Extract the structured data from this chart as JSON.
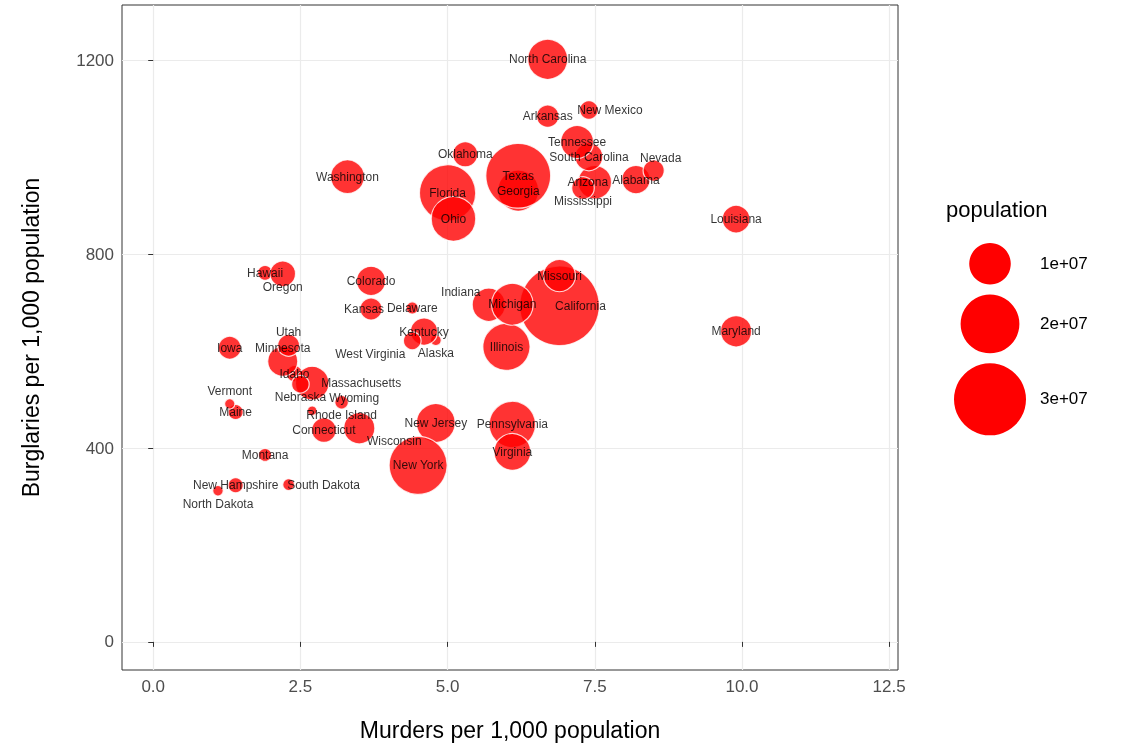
{
  "chart_data": {
    "type": "bubble",
    "xlabel": "Murders per 1,000 population",
    "ylabel": "Burglaries per 1,000 population",
    "legend_title": "population",
    "grid": true,
    "xlim": [
      -0.53,
      12.65
    ],
    "ylim": [
      -58,
      1314
    ],
    "xticks": [
      {
        "value": 0,
        "label": "0.0"
      },
      {
        "value": 2.5,
        "label": "2.5"
      },
      {
        "value": 5,
        "label": "5.0"
      },
      {
        "value": 7.5,
        "label": "7.5"
      },
      {
        "value": 10,
        "label": "10.0"
      },
      {
        "value": 12.5,
        "label": "12.5"
      }
    ],
    "yticks": [
      0,
      400,
      800,
      1200
    ],
    "size_legend": [
      {
        "value": 10000000,
        "label": "1e+07"
      },
      {
        "value": 20000000,
        "label": "2e+07"
      },
      {
        "value": 30000000,
        "label": "3e+07"
      }
    ],
    "series": [
      {
        "color": "#ff0000",
        "x": [
          8.2,
          4.8,
          7.5,
          6.7,
          6.9,
          3.7,
          2.9,
          4.4,
          5,
          6.2,
          1.9,
          2.4,
          6,
          5.7,
          1.3,
          3.7,
          4.6,
          9.9,
          1.4,
          9.9,
          2.7,
          6.1,
          2.2,
          7.3,
          6.9,
          1.9,
          2.5,
          8.5,
          1.4,
          4.8,
          7.4,
          4.5,
          6.7,
          1.1,
          5.1,
          5.3,
          2.2,
          6.1,
          3.2,
          7.4,
          2.3,
          7.2,
          6.2,
          2.3,
          1.3,
          6.1,
          3.3,
          4.4,
          3.5,
          2.7
        ],
        "values": [
          953.8,
          622.5,
          948.4,
          1084.6,
          693.3,
          744.8,
          437.1,
          688.9,
          926.3,
          931,
          761.4,
          553.3,
          608.8,
          695.6,
          606.9,
          686.9,
          640.2,
          872.3,
          474.4,
          640.7,
          533.8,
          696.6,
          578.9,
          936.6,
          755.7,
          385.7,
          531.6,
          972.4,
          323.3,
          451.5,
          1097.2,
          364.2,
          1201.9,
          311.8,
          872.8,
          1006,
          759.3,
          448.6,
          494.3,
          1000.9,
          324.4,
          1031.4,
          961.6,
          611.7,
          491.1,
          392.1,
          959.7,
          621.2,
          440.8,
          476.9
        ],
        "sizes": [
          4627851,
          686293,
          6500180,
          2855390,
          36756666,
          4861515,
          3501252,
          873092,
          18328340,
          9685744,
          1288198,
          1523816,
          12901563,
          6376792,
          3002555,
          2802134,
          4269245,
          4410796,
          1316456,
          5633597,
          6497967,
          10003422,
          5220393,
          2938618,
          5911605,
          967440,
          1783432,
          2600167,
          1315809,
          8682661,
          1984356,
          19490297,
          9222414,
          641481,
          11485910,
          3642361,
          3790060,
          12448279,
          1050788,
          4479800,
          804194,
          6214888,
          24326974,
          2736424,
          621270,
          7769089,
          6549224,
          1814468,
          5627967,
          532668
        ]
      }
    ],
    "annotations": [
      {
        "text": "Alabama",
        "x": 8.2,
        "y": 953.8
      },
      {
        "text": "Alaska",
        "x": 4.8,
        "y": 622.5
      },
      {
        "text": "Arizona",
        "x": 7.5,
        "y": 948.4
      },
      {
        "text": "Arkansas",
        "x": 6.7,
        "y": 1084.6
      },
      {
        "text": "California",
        "x": 6.9,
        "y": 693.3
      },
      {
        "text": "Colorado",
        "x": 3.7,
        "y": 744.8
      },
      {
        "text": "Connecticut",
        "x": 2.9,
        "y": 437.1
      },
      {
        "text": "Delaware",
        "x": 4.4,
        "y": 688.9
      },
      {
        "text": "Florida",
        "x": 5,
        "y": 926.3
      },
      {
        "text": "Georgia",
        "x": 6.2,
        "y": 931
      },
      {
        "text": "Hawaii",
        "x": 1.9,
        "y": 761.4
      },
      {
        "text": "Idaho",
        "x": 2.4,
        "y": 553.3
      },
      {
        "text": "Illinois",
        "x": 6,
        "y": 608.8
      },
      {
        "text": "Indiana",
        "x": 5.7,
        "y": 695.6
      },
      {
        "text": "Iowa",
        "x": 1.3,
        "y": 606.9
      },
      {
        "text": "Kansas",
        "x": 3.7,
        "y": 686.9
      },
      {
        "text": "Kentucky",
        "x": 4.6,
        "y": 640.2
      },
      {
        "text": "Louisiana",
        "x": 9.9,
        "y": 872.3
      },
      {
        "text": "Maine",
        "x": 1.4,
        "y": 474.4
      },
      {
        "text": "Maryland",
        "x": 9.9,
        "y": 640.7
      },
      {
        "text": "Massachusetts",
        "x": 2.7,
        "y": 533.8
      },
      {
        "text": "Michigan",
        "x": 6.1,
        "y": 696.6
      },
      {
        "text": "Minnesota",
        "x": 2.2,
        "y": 578.9
      },
      {
        "text": "Mississippi",
        "x": 7.3,
        "y": 936.6
      },
      {
        "text": "Missouri",
        "x": 6.9,
        "y": 755.7
      },
      {
        "text": "Montana",
        "x": 1.9,
        "y": 385.7
      },
      {
        "text": "Nebraska",
        "x": 2.5,
        "y": 531.6
      },
      {
        "text": "Nevada",
        "x": 8.5,
        "y": 972.4
      },
      {
        "text": "New Hampshire",
        "x": 1.4,
        "y": 323.3
      },
      {
        "text": "New Jersey",
        "x": 4.8,
        "y": 451.5
      },
      {
        "text": "New Mexico",
        "x": 7.4,
        "y": 1097.2
      },
      {
        "text": "New York",
        "x": 4.5,
        "y": 364.2
      },
      {
        "text": "North Carolina",
        "x": 6.7,
        "y": 1201.9
      },
      {
        "text": "North Dakota",
        "x": 1.1,
        "y": 311.8
      },
      {
        "text": "Ohio",
        "x": 5.1,
        "y": 872.8
      },
      {
        "text": "Oklahoma",
        "x": 5.3,
        "y": 1006
      },
      {
        "text": "Oregon",
        "x": 2.2,
        "y": 759.3
      },
      {
        "text": "Pennsylvania",
        "x": 6.1,
        "y": 448.6
      },
      {
        "text": "Rhode Island",
        "x": 3.2,
        "y": 494.3
      },
      {
        "text": "South Carolina",
        "x": 7.4,
        "y": 1000.9
      },
      {
        "text": "South Dakota",
        "x": 2.3,
        "y": 324.4
      },
      {
        "text": "Tennessee",
        "x": 7.2,
        "y": 1031.4
      },
      {
        "text": "Texas",
        "x": 6.2,
        "y": 961.6
      },
      {
        "text": "Utah",
        "x": 2.3,
        "y": 611.7
      },
      {
        "text": "Vermont",
        "x": 1.3,
        "y": 491.1
      },
      {
        "text": "Virginia",
        "x": 6.1,
        "y": 392.1
      },
      {
        "text": "Washington",
        "x": 3.3,
        "y": 959.7
      },
      {
        "text": "West Virginia",
        "x": 4.4,
        "y": 621.2
      },
      {
        "text": "Wisconsin",
        "x": 3.5,
        "y": 440.8
      },
      {
        "text": "Wyoming",
        "x": 2.7,
        "y": 476.9
      }
    ]
  }
}
